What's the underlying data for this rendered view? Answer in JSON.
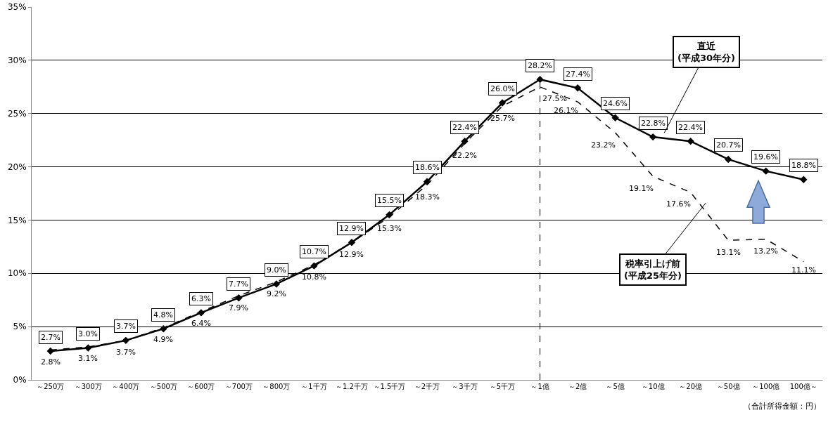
{
  "chart_data": {
    "type": "line",
    "categories": [
      "～250万",
      "～300万",
      "～400万",
      "～500万",
      "～600万",
      "～700万",
      "～800万",
      "～1千万",
      "～1.2千万",
      "～1.5千万",
      "～2千万",
      "～3千万",
      "～5千万",
      "～1億",
      "～2億",
      "～5億",
      "～10億",
      "～20億",
      "～50億",
      "～100億",
      "100億～"
    ],
    "series": [
      {
        "name": "直近\n(平成30年分)",
        "color": "#000000",
        "marker": "diamond",
        "line_style": "solid",
        "values": [
          2.7,
          3.0,
          3.7,
          4.8,
          6.3,
          7.7,
          9.0,
          10.7,
          12.9,
          15.5,
          18.6,
          22.4,
          26.0,
          28.2,
          27.4,
          24.6,
          22.8,
          22.4,
          20.7,
          19.6,
          18.8
        ],
        "value_labels": [
          "2.7%",
          "3.0%",
          "3.7%",
          "4.8%",
          "6.3%",
          "7.7%",
          "9.0%",
          "10.7%",
          "12.9%",
          "15.5%",
          "18.6%",
          "22.4%",
          "26.0%",
          "28.2%",
          "27.4%",
          "24.6%",
          "22.8%",
          "22.4%",
          "20.7%",
          "19.6%",
          "18.8%"
        ]
      },
      {
        "name": "税率引上げ前\n(平成25年分)",
        "color": "#000000",
        "marker": "none",
        "line_style": "dashed",
        "values": [
          2.8,
          3.1,
          3.7,
          4.9,
          6.4,
          7.9,
          9.2,
          10.8,
          12.9,
          15.3,
          18.3,
          22.2,
          25.7,
          27.5,
          26.1,
          23.2,
          19.1,
          17.6,
          13.1,
          13.2,
          11.1
        ],
        "value_labels": [
          "2.8%",
          "3.1%",
          "3.7%",
          "4.9%",
          "6.4%",
          "7.9%",
          "9.2%",
          "10.8%",
          "12.9%",
          "15.3%",
          "18.3%",
          "22.2%",
          "25.7%",
          "27.5%",
          "26.1%",
          "23.2%",
          "19.1%",
          "17.6%",
          "13.1%",
          "13.2%",
          "11.1%"
        ]
      }
    ],
    "ylim": [
      0,
      35
    ],
    "yticks": [
      {
        "value": 0,
        "label": "0%"
      },
      {
        "value": 5,
        "label": "5%"
      },
      {
        "value": 10,
        "label": "10%"
      },
      {
        "value": 15,
        "label": "15%"
      },
      {
        "value": 20,
        "label": "20%"
      },
      {
        "value": 25,
        "label": "25%"
      },
      {
        "value": 30,
        "label": "30%"
      },
      {
        "value": 35,
        "label": "35%"
      }
    ],
    "grid": "y",
    "legend": false,
    "ref_lines": [
      {
        "axis": "x",
        "value": "～1億",
        "line_style": "dashed",
        "color": "#000000"
      }
    ],
    "annotations": [
      "（合計所得金額：円）"
    ]
  }
}
